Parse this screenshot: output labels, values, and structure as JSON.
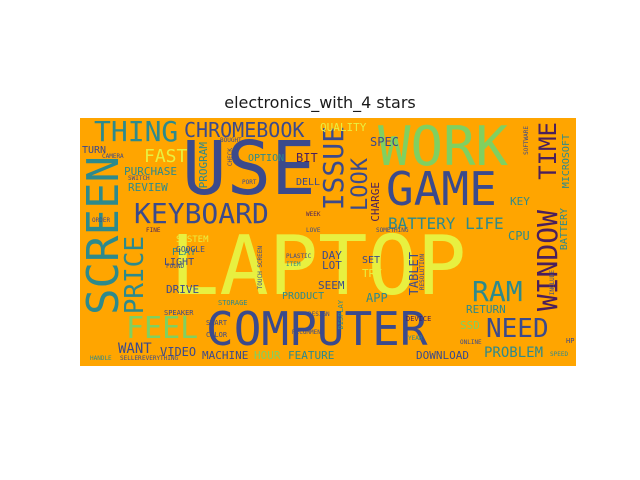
{
  "title": "electronics_with_4 stars",
  "colors": {
    "background": "#ffa500",
    "navy": "#3b4a8c",
    "yellow": "#e8f040",
    "green": "#80d060",
    "teal": "#2d8a8c",
    "purple": "#4a1f5c"
  },
  "words": {
    "laptop": "LAPTOP",
    "use": "USE",
    "computer": "COMPUTER",
    "screen": "SCREEN",
    "game": "GAME",
    "work": "WORK",
    "keyboard": "KEYBOARD",
    "chromebook": "CHROMEBOOK",
    "thing": "THING",
    "window": "WINDOW",
    "time": "TIME",
    "issue": "ISSUE",
    "look": "LOOK",
    "need": "NEED",
    "ram": "RAM",
    "price": "PRICE",
    "feel": "FEEL",
    "fast": "FAST",
    "battery_life": "BATTERY LIFE",
    "problem": "PROBLEM",
    "want": "WANT",
    "video": "VIDEO",
    "machine": "MACHINE",
    "hour": "HOUR",
    "feature": "FEATURE",
    "download": "DOWNLOAD",
    "quality": "QUALITY",
    "spec": "SPEC",
    "bit": "BIT",
    "dell": "DELL",
    "program": "PROGRAM",
    "option": "OPTION",
    "review": "REVIEW",
    "purchase": "PURCHASE",
    "turn": "TURN",
    "charge": "CHARGE",
    "tablet": "TABLET",
    "cpu": "CPU",
    "key": "KEY",
    "microsoft": "MICROSOFT",
    "battery": "BATTERY",
    "return": "RETURN",
    "ssd": "SSD",
    "app": "APP",
    "seem": "SEEM",
    "day": "DAY",
    "lot": "LOT",
    "set": "SET",
    "try": "TRY",
    "light": "LIGHT",
    "drive": "DRIVE",
    "play": "PLAY",
    "google": "GOOGLE",
    "system": "SYSTEM",
    "product": "PRODUCT",
    "device": "DEVICE",
    "storage": "STORAGE",
    "speaker": "SPEAKER",
    "start": "START",
    "color": "COLOR",
    "design": "DESIGN",
    "display": "DISPLAY",
    "item": "ITEM",
    "plastic": "PLASTIC",
    "recommend": "RECOMMEND",
    "love": "LOVE",
    "week": "WEEK",
    "port": "PORT",
    "switch": "SWITCH",
    "camera": "CAMERA",
    "order": "ORDER",
    "fine": "FINE",
    "found": "FOUND",
    "touch_screen": "TOUCH SCREEN",
    "something": "SOMETHING",
    "include": "INCLUDE",
    "speed": "SPEED",
    "everything": "EVERYTHING",
    "seller": "SELLER",
    "handle": "HANDLE",
    "year": "YEAR",
    "software": "SOFTWARE",
    "bought": "BOUGHT",
    "online": "ONLINE",
    "check": "CHECK",
    "resolution": "RESOLUTION",
    "hp": "HP"
  }
}
